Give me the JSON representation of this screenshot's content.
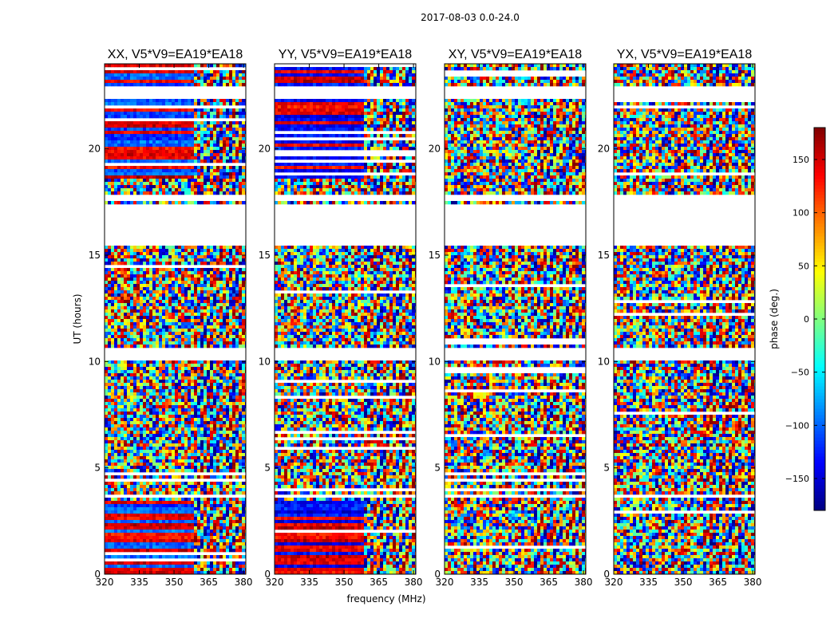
{
  "suptitle": "2017-08-03 0.0-24.0",
  "chart_data": {
    "type": "heatmap",
    "xlabel": "frequency (MHz)",
    "ylabel": "UT (hours)",
    "xlim": [
      320,
      381
    ],
    "ylim": [
      0,
      24
    ],
    "xticks": [
      320,
      335,
      350,
      365,
      380
    ],
    "yticks": [
      0,
      5,
      10,
      15,
      20
    ],
    "panels": [
      {
        "title": "XX, V5*V9=EA19*EA18",
        "pol": "XX"
      },
      {
        "title": "YY, V5*V9=EA19*EA18",
        "pol": "YY"
      },
      {
        "title": "XY, V5*V9=EA19*EA18",
        "pol": "XY"
      },
      {
        "title": "YX, V5*V9=EA19*EA18",
        "pol": "YX"
      }
    ],
    "colorbar": {
      "label": "phase (deg.)",
      "range": [
        -180,
        180
      ],
      "ticks": [
        -150,
        -100,
        -50,
        0,
        50,
        100,
        150
      ],
      "tick_labels": [
        "−150",
        "−100",
        "−50",
        "0",
        "50",
        "100",
        "150"
      ],
      "colormap": "jet"
    },
    "flagged_ut_ranges": [
      [
        3.6,
        3.7
      ],
      [
        10.0,
        10.7
      ],
      [
        15.5,
        17.4
      ],
      [
        17.6,
        17.8
      ],
      [
        22.3,
        23.0
      ]
    ],
    "coherent_ut_ranges": [
      [
        0.0,
        3.0
      ],
      [
        3.0,
        3.4
      ],
      [
        18.6,
        24.0
      ]
    ]
  }
}
